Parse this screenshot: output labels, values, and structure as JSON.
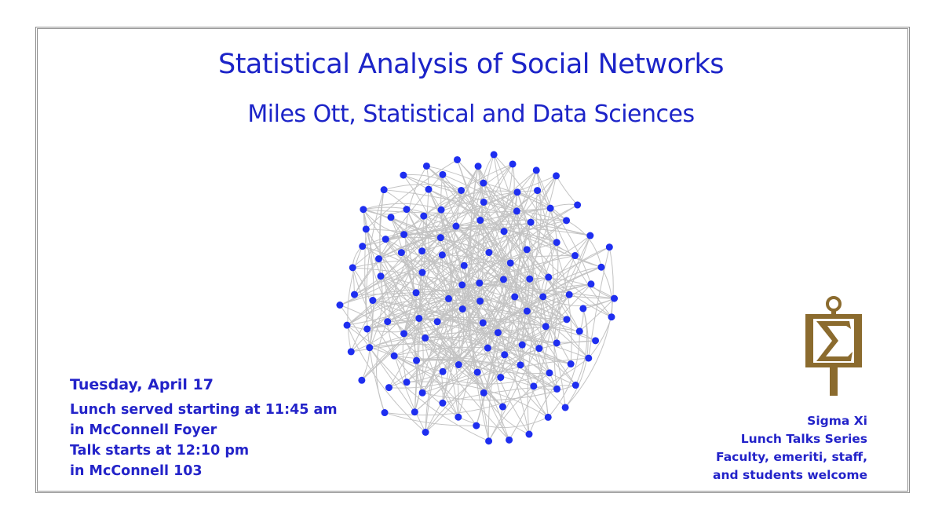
{
  "title": "Statistical Analysis of Social Networks",
  "subtitle": "Miles Ott, Statistical and Data Sciences",
  "event": {
    "day": "Tuesday",
    "separator": ",",
    "date": " April 17",
    "lines": [
      "Lunch served starting at 11:45 am",
      "in McConnell Foyer",
      "Talk starts at 12:10 pm",
      "in McConnell 103"
    ]
  },
  "series": {
    "lines": [
      "Sigma Xi",
      "Lunch Talks Series",
      "Faculty, emeriti, staff,",
      "and students welcome"
    ]
  },
  "logo": {
    "icon": "sigma-xi-key-icon",
    "color": "#8b6b2e"
  },
  "colors": {
    "text": "#1c24c8",
    "node": "#1e2ef0",
    "edge": "#c3c3c3",
    "frame": "#8e8e8e"
  }
}
